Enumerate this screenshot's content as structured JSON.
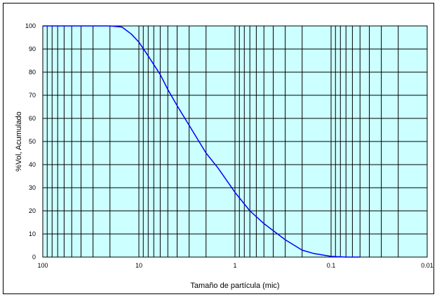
{
  "chart_data": {
    "type": "line",
    "title": "",
    "xlabel": "Tamaño de partícula (mic)",
    "ylabel": "%Vol, Acumulado",
    "x_scale": "log",
    "x_reversed": true,
    "xlim": [
      100,
      0.01
    ],
    "ylim": [
      0,
      100
    ],
    "x_ticks": [
      {
        "value": 100,
        "label": "100"
      },
      {
        "value": 10,
        "label": "10"
      },
      {
        "value": 1,
        "label": "1"
      },
      {
        "value": 0.1,
        "label": "0.1"
      },
      {
        "value": 0.01,
        "label": "0.01"
      }
    ],
    "y_ticks": [
      {
        "value": 0,
        "label": "0"
      },
      {
        "value": 10,
        "label": "10"
      },
      {
        "value": 20,
        "label": "20"
      },
      {
        "value": 30,
        "label": "30"
      },
      {
        "value": 40,
        "label": "40"
      },
      {
        "value": 50,
        "label": "50"
      },
      {
        "value": 60,
        "label": "60"
      },
      {
        "value": 70,
        "label": "70"
      },
      {
        "value": 80,
        "label": "80"
      },
      {
        "value": 90,
        "label": "90"
      },
      {
        "value": 100,
        "label": "100"
      }
    ],
    "grid": true,
    "legend": "none",
    "series": [
      {
        "color": "#0000ff",
        "x": [
          100,
          20,
          15,
          12,
          10,
          8,
          6,
          5,
          4,
          3,
          2,
          1.5,
          1,
          0.7,
          0.5,
          0.3,
          0.2,
          0.15,
          0.1,
          0.07,
          0.05
        ],
        "y": [
          100,
          100,
          99.5,
          96.5,
          93,
          87,
          79,
          72.5,
          65.5,
          57,
          45,
          38.5,
          28,
          20,
          14.5,
          7.5,
          3,
          1.5,
          0.3,
          0,
          0
        ]
      }
    ]
  },
  "colors": {
    "plot_background": "#ccffff",
    "grid": "#000000",
    "line": "#0000ff"
  }
}
